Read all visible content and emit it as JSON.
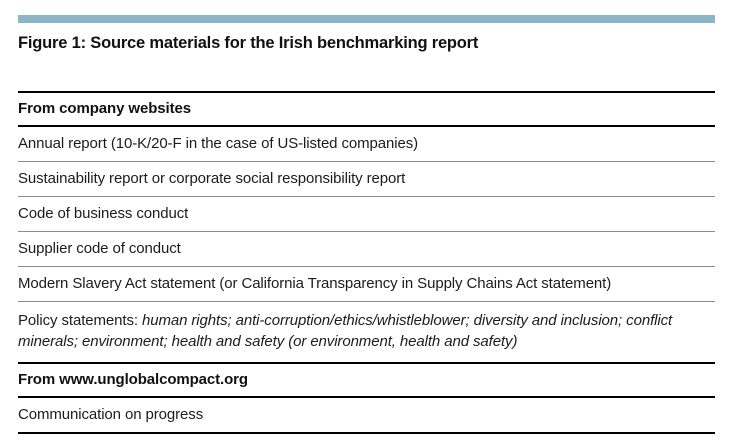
{
  "colors": {
    "accent_bar": "#8cb6c8",
    "thick_rule": "#000000",
    "thin_rule": "#8c8c8c",
    "text": "#1c1c1c"
  },
  "figure": {
    "title": "Figure 1: Source materials for the Irish benchmarking report"
  },
  "table": {
    "sections": [
      {
        "header": "From company websites",
        "rows": [
          {
            "text": "Annual report (10-K/20-F in the case of US-listed companies)"
          },
          {
            "text": "Sustainability report or corporate social responsibility report"
          },
          {
            "text": "Code of business conduct"
          },
          {
            "text": "Supplier code of conduct"
          },
          {
            "text": "Modern Slavery Act statement (or California Transparency in Supply Chains Act statement)"
          },
          {
            "prefix": "Policy statements: ",
            "italic": "human rights; anti-corruption/ethics/whistleblower; diversity and inclusion; conflict minerals; environment; health and safety (or environment, health and safety)"
          }
        ]
      },
      {
        "header": "From www.unglobalcompact.org",
        "rows": [
          {
            "text": "Communication on progress"
          }
        ]
      }
    ]
  }
}
